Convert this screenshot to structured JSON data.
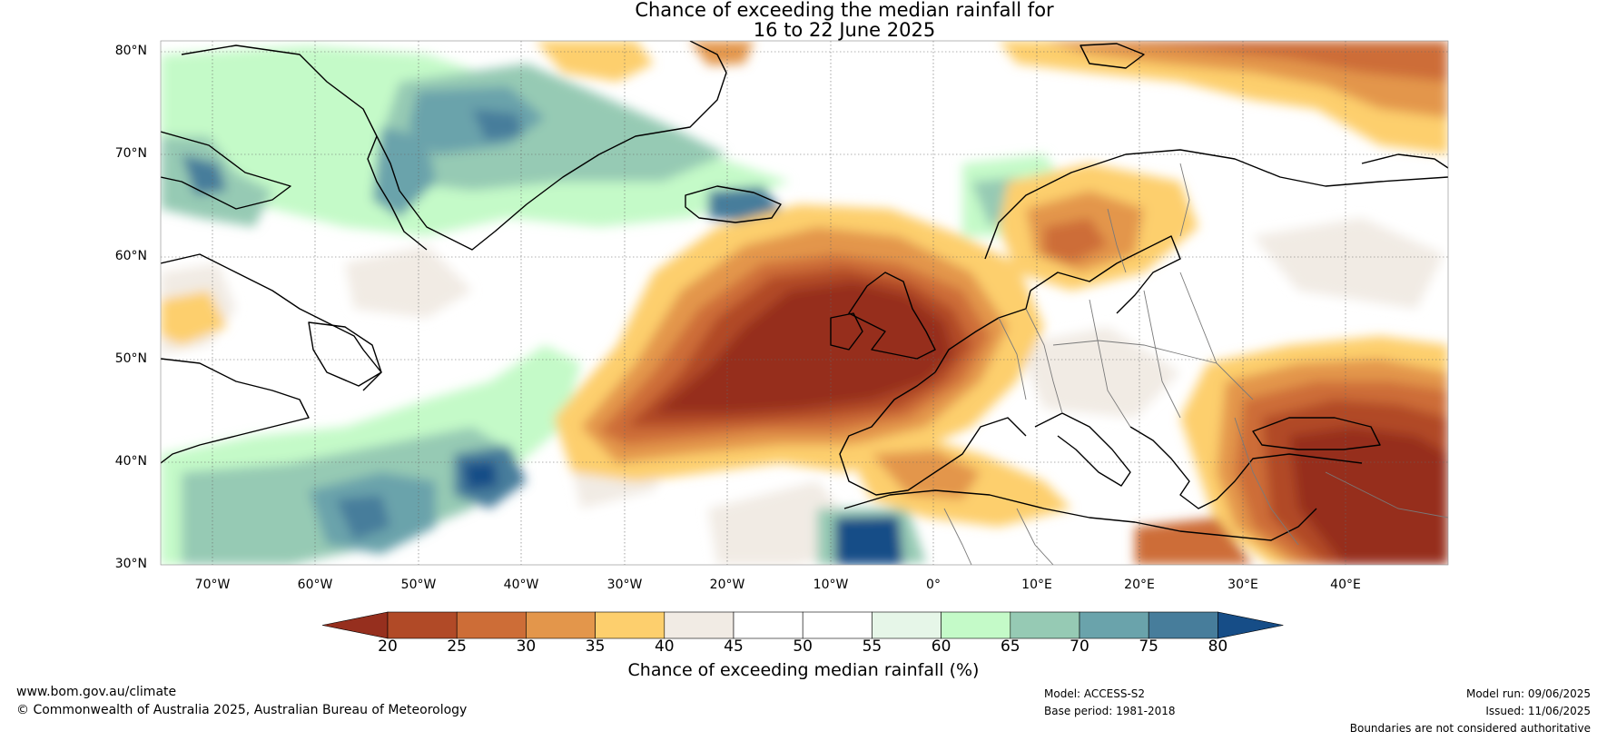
{
  "title": {
    "line1": "Chance of exceeding the median rainfall for",
    "line2": "16 to 22 June 2025"
  },
  "map": {
    "lat_labels": [
      "80°N",
      "70°N",
      "60°N",
      "50°N",
      "40°N",
      "30°N"
    ],
    "lon_labels": [
      "70°W",
      "60°W",
      "50°W",
      "40°W",
      "30°W",
      "20°W",
      "10°W",
      "0°",
      "10°E",
      "20°E",
      "30°E",
      "40°E"
    ],
    "extent": {
      "lon_min": -75,
      "lon_max": 50,
      "lat_min": 30,
      "lat_max": 81
    }
  },
  "colorbar": {
    "ticks": [
      "20",
      "25",
      "30",
      "35",
      "40",
      "45",
      "50",
      "55",
      "60",
      "65",
      "70",
      "75",
      "80"
    ],
    "colors": [
      "#962f1e",
      "#b14a27",
      "#cd6d37",
      "#e3964b",
      "#fdcf6d",
      "#f1ebe4",
      "#ffffff",
      "#ffffff",
      "#e6f6e8",
      "#c4fac8",
      "#96cab4",
      "#6aa3ab",
      "#477d9b",
      "#164d87"
    ],
    "label": "Chance of exceeding median rainfall (%)"
  },
  "footer": {
    "url": "www.bom.gov.au/climate",
    "copyright": "© Commonwealth of Australia 2025, Australian Bureau of Meteorology",
    "model": "Model: ACCESS-S2",
    "base_period": "Base period: 1981-2018",
    "model_run": "Model run: 09/06/2025",
    "issued": "Issued: 11/06/2025",
    "disclaimer": "Boundaries are not considered authoritative"
  }
}
